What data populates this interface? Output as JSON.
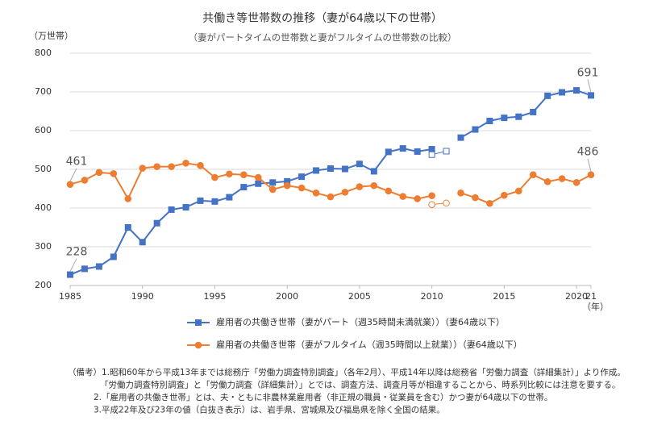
{
  "chart_data": {
    "type": "line",
    "title": "共働き等世帯数の推移（妻が64歳以下の世帯）",
    "subtitle": "（妻がパートタイムの世帯数と妻がフルタイムの世帯数の比較）",
    "y_unit": "（万世帯）",
    "x_unit": "（年）",
    "x": [
      1985,
      1986,
      1987,
      1988,
      1989,
      1990,
      1991,
      1992,
      1993,
      1994,
      1995,
      1996,
      1997,
      1998,
      1999,
      2000,
      2001,
      2002,
      2003,
      2004,
      2005,
      2006,
      2007,
      2008,
      2009,
      2010,
      2011,
      2012,
      2013,
      2014,
      2015,
      2016,
      2017,
      2018,
      2019,
      2020,
      2021
    ],
    "xlim": [
      1985,
      2021
    ],
    "xticks": [
      1985,
      1990,
      1995,
      2000,
      2005,
      2010,
      2015,
      2020,
      {
        "value": 2021,
        "label": "21"
      }
    ],
    "ylim": [
      200,
      800
    ],
    "yticks": [
      200,
      300,
      400,
      500,
      600,
      700,
      800
    ],
    "grid": true,
    "label_ends": true,
    "series": [
      {
        "name": "雇用者の共働き世帯（妻がパート（週35時間未満就業））（妻64歳以下）",
        "color": "#4472c4",
        "marker": "square",
        "hollow": false,
        "values": [
          228,
          243,
          249,
          274,
          350,
          312,
          361,
          396,
          402,
          419,
          417,
          428,
          454,
          463,
          466,
          469,
          481,
          497,
          502,
          501,
          514,
          495,
          545,
          554,
          546,
          552,
          null,
          582,
          603,
          625,
          633,
          636,
          648,
          690,
          699,
          704,
          691
        ]
      },
      {
        "name": "雇用者の共働き世帯（妻がフルタイム（週35時間以上就業））（妻64歳以下）",
        "color": "#ed7d31",
        "marker": "circle",
        "hollow": false,
        "values": [
          461,
          472,
          492,
          489,
          424,
          503,
          507,
          507,
          516,
          510,
          479,
          488,
          486,
          479,
          448,
          458,
          452,
          439,
          429,
          441,
          455,
          458,
          444,
          430,
          424,
          432,
          null,
          439,
          427,
          412,
          433,
          444,
          486,
          468,
          476,
          466,
          486
        ]
      },
      {
        "color": "#4472c4",
        "marker": "square",
        "hollow": true,
        "values": [
          null,
          null,
          null,
          null,
          null,
          null,
          null,
          null,
          null,
          null,
          null,
          null,
          null,
          null,
          null,
          null,
          null,
          null,
          null,
          null,
          null,
          null,
          null,
          null,
          null,
          538,
          547,
          null,
          null,
          null,
          null,
          null,
          null,
          null,
          null,
          null,
          null
        ]
      },
      {
        "color": "#ed7d31",
        "marker": "circle",
        "hollow": true,
        "values": [
          null,
          null,
          null,
          null,
          null,
          null,
          null,
          null,
          null,
          null,
          null,
          null,
          null,
          null,
          null,
          null,
          null,
          null,
          null,
          null,
          null,
          null,
          null,
          null,
          null,
          409,
          413,
          null,
          null,
          null,
          null,
          null,
          null,
          null,
          null,
          null,
          null
        ]
      }
    ],
    "notes": [
      "（備考）1.昭和60年から平成13年までは総務庁「労働力調査特別調査」（各年2月）、平成14年以降は総務省「労働力調査（詳細集計）」より作成。",
      "「労働力調査特別調査」と「労働力調査（詳細集計）」とでは、調査方法、調査月等が相違することから、時系列比較には注意を要する。",
      "2.「雇用者の共働き世帯」とは、夫・ともに非農林業雇用者（非正規の職員・従業員を含む）かつ妻が64歳以下の世帯。",
      "3.平成22年及び23年の値（白抜き表示）は、岩手県、宮城県及び福島県を除く全国の結果。"
    ]
  }
}
